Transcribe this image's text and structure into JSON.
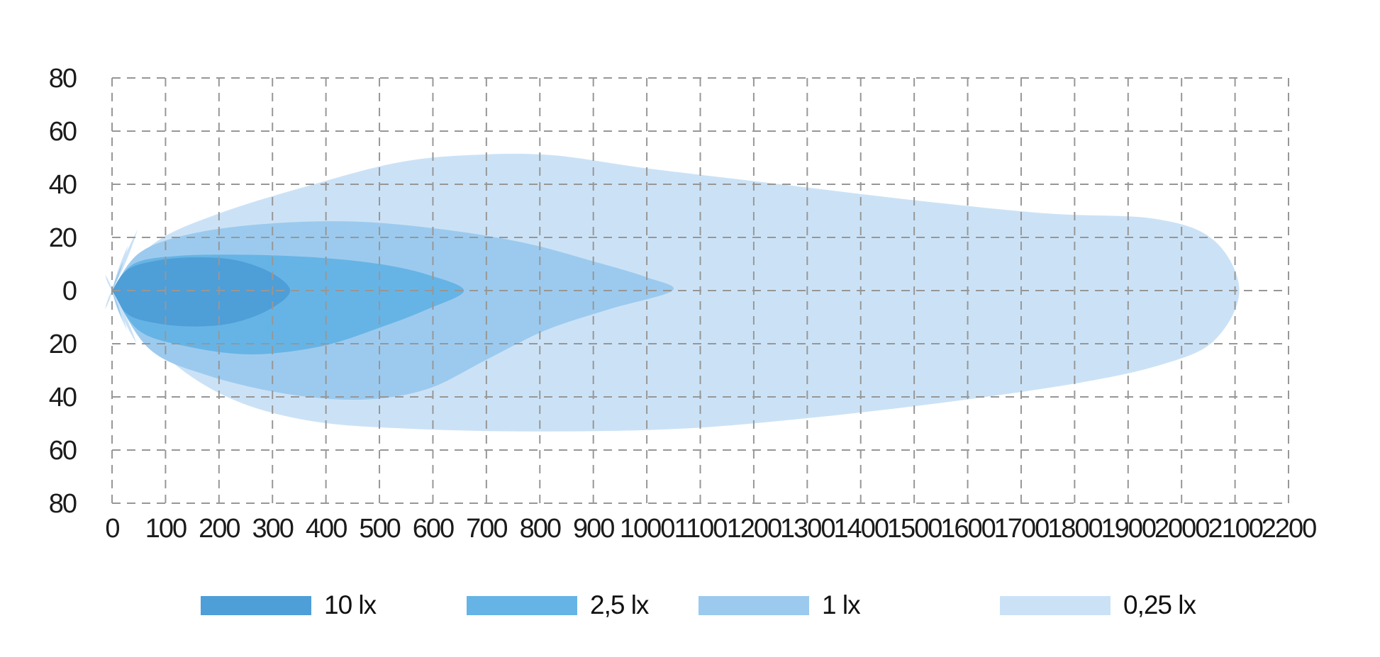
{
  "chart_data": {
    "type": "area",
    "subtype": "isolux-beam-contour",
    "title": "",
    "xlabel": "",
    "ylabel": "",
    "units": "lx",
    "grid": "dashed",
    "legend_position": "bottom",
    "axis": {
      "x_range": [
        0,
        2200
      ],
      "y_range": [
        -80,
        80
      ],
      "x_tick_step": 100,
      "y_tick_step": 20
    },
    "x_tick_labels": [
      "0",
      "100",
      "200",
      "300",
      "400",
      "500",
      "600",
      "700",
      "800",
      "900",
      "1000",
      "1100",
      "1200",
      "1300",
      "1400",
      "1500",
      "1600",
      "1700",
      "1800",
      "1900",
      "2000",
      "2100",
      "2200"
    ],
    "y_tick_labels": [
      "80",
      "60",
      "40",
      "20",
      "0",
      "20",
      "40",
      "60",
      "80"
    ],
    "series": [
      {
        "name": "0,25 lx",
        "lux": 0.25,
        "color": "#CBE2F6",
        "reach": 2108,
        "top": [
          [
            0,
            0
          ],
          [
            80,
            18
          ],
          [
            200,
            29
          ],
          [
            360,
            39
          ],
          [
            530,
            48
          ],
          [
            670,
            51
          ],
          [
            820,
            51
          ],
          [
            1000,
            46
          ],
          [
            1250,
            40
          ],
          [
            1500,
            34
          ],
          [
            1750,
            29
          ],
          [
            1950,
            27
          ],
          [
            2060,
            19
          ],
          [
            2108,
            0
          ]
        ],
        "bottom": [
          [
            0,
            0
          ],
          [
            90,
            -23
          ],
          [
            215,
            -40
          ],
          [
            370,
            -49
          ],
          [
            560,
            -52
          ],
          [
            800,
            -53
          ],
          [
            1060,
            -52
          ],
          [
            1300,
            -48
          ],
          [
            1560,
            -42
          ],
          [
            1800,
            -35
          ],
          [
            1960,
            -28
          ],
          [
            2060,
            -19
          ],
          [
            2108,
            0
          ]
        ]
      },
      {
        "name": "1 lx",
        "lux": 1,
        "color": "#9CCAEE",
        "reach": 1048,
        "top": [
          [
            0,
            0
          ],
          [
            50,
            14
          ],
          [
            140,
            21
          ],
          [
            280,
            25
          ],
          [
            450,
            26
          ],
          [
            620,
            23
          ],
          [
            770,
            18
          ],
          [
            900,
            11
          ],
          [
            1000,
            5
          ],
          [
            1048,
            0
          ]
        ],
        "bottom": [
          [
            0,
            0
          ],
          [
            70,
            -22
          ],
          [
            180,
            -32
          ],
          [
            330,
            -39
          ],
          [
            470,
            -41
          ],
          [
            590,
            -37
          ],
          [
            700,
            -26
          ],
          [
            810,
            -15
          ],
          [
            930,
            -7
          ],
          [
            1048,
            0
          ]
        ]
      },
      {
        "name": "2,5 lx",
        "lux": 2.5,
        "color": "#66B4E5",
        "reach": 658,
        "top": [
          [
            0,
            0
          ],
          [
            40,
            10
          ],
          [
            120,
            13
          ],
          [
            240,
            13.5
          ],
          [
            380,
            12.5
          ],
          [
            500,
            10
          ],
          [
            590,
            6
          ],
          [
            658,
            0
          ]
        ],
        "bottom": [
          [
            0,
            0
          ],
          [
            50,
            -15
          ],
          [
            140,
            -21
          ],
          [
            260,
            -24
          ],
          [
            390,
            -21
          ],
          [
            500,
            -14
          ],
          [
            590,
            -7
          ],
          [
            658,
            0
          ]
        ]
      },
      {
        "name": "10 lx",
        "lux": 10,
        "color": "#4E9ED8",
        "reach": 333,
        "top": [
          [
            0,
            0
          ],
          [
            30,
            8
          ],
          [
            90,
            11.5
          ],
          [
            160,
            12.5
          ],
          [
            230,
            11.5
          ],
          [
            295,
            7
          ],
          [
            333,
            0
          ]
        ],
        "bottom": [
          [
            0,
            0
          ],
          [
            30,
            -9
          ],
          [
            90,
            -12.5
          ],
          [
            160,
            -13.5
          ],
          [
            230,
            -12
          ],
          [
            295,
            -7
          ],
          [
            333,
            0
          ]
        ]
      }
    ],
    "origin_rays": [
      {
        "color": "#CBE2F6",
        "tip": [
          48,
          23
        ],
        "width": 9
      },
      {
        "color": "#CBE2F6",
        "tip": [
          30,
          17
        ],
        "width": 7
      },
      {
        "color": "#CBE2F6",
        "tip": [
          46,
          -20
        ],
        "width": 9
      },
      {
        "color": "#CBE2F6",
        "tip": [
          28,
          -15
        ],
        "width": 7
      },
      {
        "color": "#CBE2F6",
        "tip": [
          -13,
          6
        ],
        "width": 5
      },
      {
        "color": "#CBE2F6",
        "tip": [
          -13,
          -7
        ],
        "width": 5
      },
      {
        "color": "#9CCAEE",
        "tip": [
          21,
          11
        ],
        "width": 5
      },
      {
        "color": "#9CCAEE",
        "tip": [
          19,
          -11
        ],
        "width": 5
      }
    ],
    "grid_color": "#979797",
    "tick_color": "#1b1b1b"
  },
  "legend": {
    "items": [
      {
        "label": "10 lx",
        "color": "#4E9ED8"
      },
      {
        "label": "2,5 lx",
        "color": "#66B4E5"
      },
      {
        "label": "1 lx",
        "color": "#9CCAEE"
      },
      {
        "label": "0,25 lx",
        "color": "#CBE2F6"
      }
    ]
  }
}
